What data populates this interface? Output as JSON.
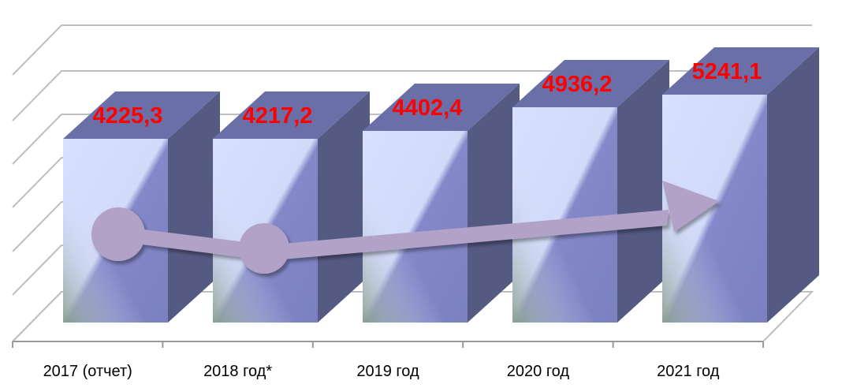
{
  "chart_data": {
    "type": "bar",
    "style": "3d-column",
    "categories": [
      "2017 (отчет)",
      "2018 год*",
      "2019 год",
      "2020 год",
      "2021 год"
    ],
    "values": [
      4225.3,
      4217.2,
      4402.4,
      4936.2,
      5241.1
    ],
    "value_labels": [
      "4225,3",
      "4217,2",
      "4402,4",
      "4936,2",
      "5241,1"
    ],
    "title": "",
    "xlabel": "",
    "ylabel": "",
    "grid": true,
    "legend": "none",
    "trend_arrow": true,
    "colors": {
      "bar_front": "#8488c8",
      "bar_front_light": "#d8e0ff",
      "bar_top": "#6a6fa8",
      "bar_side": "#545a82",
      "value_label": "#ff0000",
      "grid": "#bfbfbf",
      "arrow": "#b3a2c8"
    }
  }
}
